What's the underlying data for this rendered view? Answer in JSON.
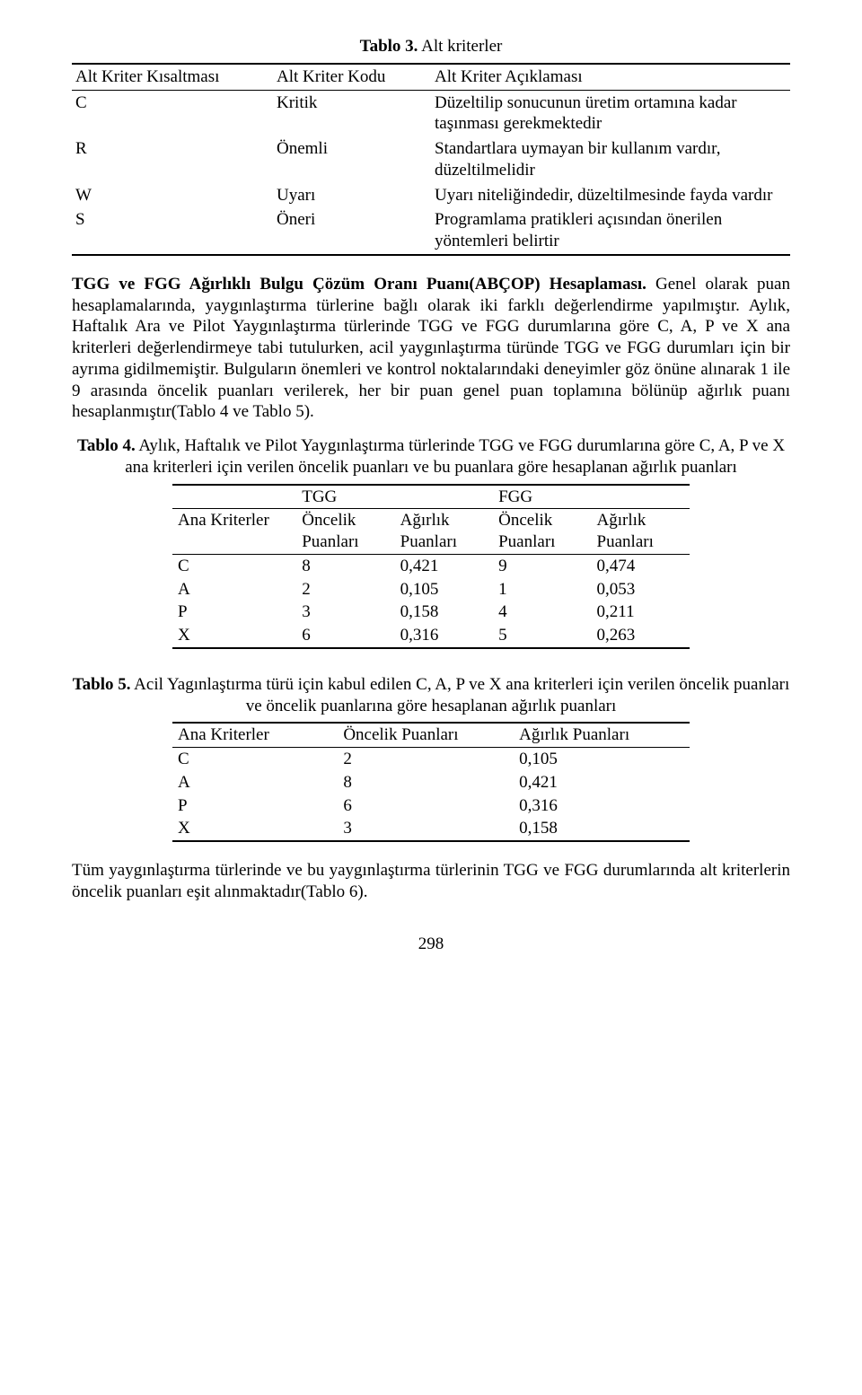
{
  "table3": {
    "caption_bold": "Tablo 3.",
    "caption_rest": " Alt kriterler",
    "headers": [
      "Alt Kriter Kısaltması",
      "Alt Kriter Kodu",
      "Alt Kriter Açıklaması"
    ],
    "rows": [
      {
        "c1": "C",
        "c2": "Kritik",
        "c3": "Düzeltilip sonucunun üretim ortamına kadar taşınması gerekmektedir"
      },
      {
        "c1": "R",
        "c2": "Önemli",
        "c3": "Standartlara uymayan bir kullanım vardır, düzeltilmelidir"
      },
      {
        "c1": "W",
        "c2": "Uyarı",
        "c3": "Uyarı niteliğindedir, düzeltilmesinde fayda vardır"
      },
      {
        "c1": "S",
        "c2": "Öneri",
        "c3": "Programlama pratikleri açısından önerilen yöntemleri belirtir"
      }
    ]
  },
  "para1_bold": "TGG ve FGG Ağırlıklı Bulgu Çözüm Oranı Puanı(ABÇOP) Hesaplaması.",
  "para1_rest": " Genel olarak puan hesaplamalarında, yaygınlaştırma türlerine bağlı olarak iki farklı değerlendirme yapılmıştır. Aylık, Haftalık Ara ve Pilot Yaygınlaştırma türlerinde TGG ve FGG durumlarına göre C, A, P ve X ana kriterleri değerlendirmeye tabi tutulurken, acil yaygınlaştırma türünde TGG ve FGG durumları için bir ayrıma gidilmemiştir. Bulguların önemleri ve kontrol noktalarındaki deneyimler göz önüne alınarak 1 ile 9 arasında öncelik puanları verilerek, her bir puan genel puan toplamına bölünüp ağırlık puanı hesaplanmıştır(Tablo 4 ve Tablo 5).",
  "table4": {
    "caption_bold": "Tablo 4.",
    "caption_rest": " Aylık, Haftalık ve Pilot Yaygınlaştırma türlerinde TGG ve FGG durumlarına göre C, A, P ve X ana kriterleri için verilen öncelik puanları ve bu puanlara göre hesaplanan ağırlık puanları",
    "group_headers": [
      "TGG",
      "FGG"
    ],
    "row_label_header": "Ana Kriterler",
    "sub_headers": [
      "Öncelik Puanları",
      "Ağırlık Puanları",
      "Öncelik Puanları",
      "Ağırlık Puanları"
    ],
    "rows": [
      {
        "k": "C",
        "v": [
          "8",
          "0,421",
          "9",
          "0,474"
        ]
      },
      {
        "k": "A",
        "v": [
          "2",
          "0,105",
          "1",
          "0,053"
        ]
      },
      {
        "k": "P",
        "v": [
          "3",
          "0,158",
          "4",
          "0,211"
        ]
      },
      {
        "k": "X",
        "v": [
          "6",
          "0,316",
          "5",
          "0,263"
        ]
      }
    ]
  },
  "table5": {
    "caption_bold": "Tablo 5.",
    "caption_rest": " Acil Yagınlaştırma türü için kabul edilen C, A, P ve X ana kriterleri için verilen öncelik puanları ve öncelik puanlarına göre hesaplanan ağırlık puanları",
    "headers": [
      "Ana Kriterler",
      "Öncelik Puanları",
      "Ağırlık Puanları"
    ],
    "rows": [
      {
        "k": "C",
        "v": [
          "2",
          "0,105"
        ]
      },
      {
        "k": "A",
        "v": [
          "8",
          "0,421"
        ]
      },
      {
        "k": "P",
        "v": [
          "6",
          "0,316"
        ]
      },
      {
        "k": "X",
        "v": [
          "3",
          "0,158"
        ]
      }
    ]
  },
  "para2": "Tüm yaygınlaştırma türlerinde ve bu yaygınlaştırma türlerinin TGG ve FGG durumlarında alt kriterlerin öncelik puanları eşit alınmaktadır(Tablo 6).",
  "page_number": "298"
}
